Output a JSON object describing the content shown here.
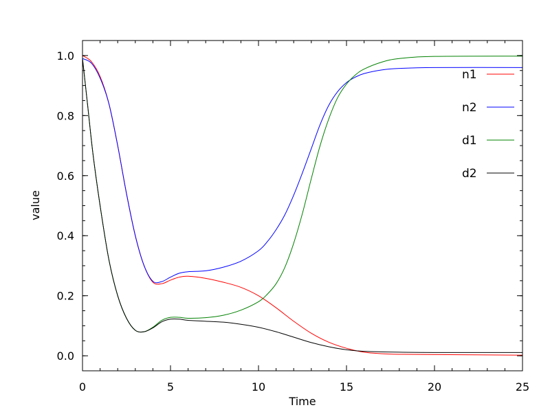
{
  "chart_data": {
    "type": "line",
    "title": "",
    "xlabel": "Time",
    "ylabel": "value",
    "xlim": [
      0,
      25
    ],
    "ylim": [
      -0.05,
      1.05
    ],
    "x_ticks": [
      0,
      5,
      10,
      15,
      20,
      25
    ],
    "x_tick_labels": [
      "0",
      "5",
      "10",
      "15",
      "20",
      "25"
    ],
    "y_ticks": [
      0.0,
      0.2,
      0.4,
      0.6,
      0.8,
      1.0
    ],
    "y_tick_labels": [
      "0.0",
      "0.2",
      "0.4",
      "0.6",
      "0.8",
      "1.0"
    ],
    "grid": false,
    "legend_position": "top-right",
    "series": [
      {
        "name": "n1",
        "color": "#ff0000",
        "x": [
          0,
          0.5,
          1,
          1.5,
          2,
          2.5,
          3,
          3.5,
          4,
          4.5,
          5,
          5.5,
          6,
          7,
          8,
          9,
          10,
          11,
          12,
          13,
          14,
          15,
          16,
          17,
          18,
          20,
          25
        ],
        "y": [
          1.0,
          0.98,
          0.93,
          0.84,
          0.7,
          0.54,
          0.4,
          0.3,
          0.245,
          0.24,
          0.252,
          0.262,
          0.265,
          0.258,
          0.245,
          0.228,
          0.2,
          0.16,
          0.115,
          0.075,
          0.045,
          0.025,
          0.012,
          0.007,
          0.005,
          0.004,
          0.002
        ]
      },
      {
        "name": "n2",
        "color": "#0000ff",
        "x": [
          0,
          0.5,
          1,
          1.5,
          2,
          2.5,
          3,
          3.5,
          4,
          4.5,
          5,
          5.5,
          6,
          7,
          8,
          9,
          10,
          10.5,
          11,
          11.5,
          12,
          12.5,
          13,
          13.5,
          14,
          14.5,
          15,
          15.5,
          16,
          17,
          18,
          20,
          25
        ],
        "y": [
          0.99,
          0.975,
          0.925,
          0.84,
          0.7,
          0.54,
          0.4,
          0.3,
          0.248,
          0.247,
          0.262,
          0.275,
          0.28,
          0.283,
          0.295,
          0.315,
          0.35,
          0.38,
          0.42,
          0.47,
          0.535,
          0.61,
          0.69,
          0.77,
          0.835,
          0.88,
          0.91,
          0.928,
          0.94,
          0.952,
          0.957,
          0.96,
          0.96
        ]
      },
      {
        "name": "d1",
        "color": "#008000",
        "x": [
          0,
          0.3,
          0.6,
          1,
          1.5,
          2,
          2.5,
          3,
          3.5,
          4,
          4.5,
          5,
          5.5,
          6,
          7,
          8,
          9,
          10,
          10.5,
          11,
          11.5,
          12,
          12.5,
          13,
          13.5,
          14,
          14.5,
          15,
          15.5,
          16,
          17,
          18,
          20,
          25
        ],
        "y": [
          0.99,
          0.83,
          0.67,
          0.5,
          0.32,
          0.2,
          0.125,
          0.085,
          0.08,
          0.095,
          0.118,
          0.128,
          0.128,
          0.125,
          0.127,
          0.135,
          0.152,
          0.18,
          0.205,
          0.24,
          0.295,
          0.375,
          0.475,
          0.59,
          0.7,
          0.79,
          0.86,
          0.905,
          0.935,
          0.955,
          0.978,
          0.99,
          0.997,
          0.998
        ]
      },
      {
        "name": "d2",
        "color": "#000000",
        "x": [
          0,
          0.3,
          0.6,
          1,
          1.5,
          2,
          2.5,
          3,
          3.5,
          4,
          4.5,
          5,
          5.5,
          6,
          7,
          8,
          9,
          10,
          11,
          12,
          13,
          14,
          15,
          16,
          18,
          20,
          25
        ],
        "y": [
          0.99,
          0.83,
          0.67,
          0.5,
          0.32,
          0.2,
          0.125,
          0.085,
          0.08,
          0.093,
          0.113,
          0.122,
          0.122,
          0.118,
          0.115,
          0.112,
          0.105,
          0.095,
          0.08,
          0.062,
          0.044,
          0.03,
          0.02,
          0.015,
          0.012,
          0.011,
          0.011
        ]
      }
    ]
  }
}
